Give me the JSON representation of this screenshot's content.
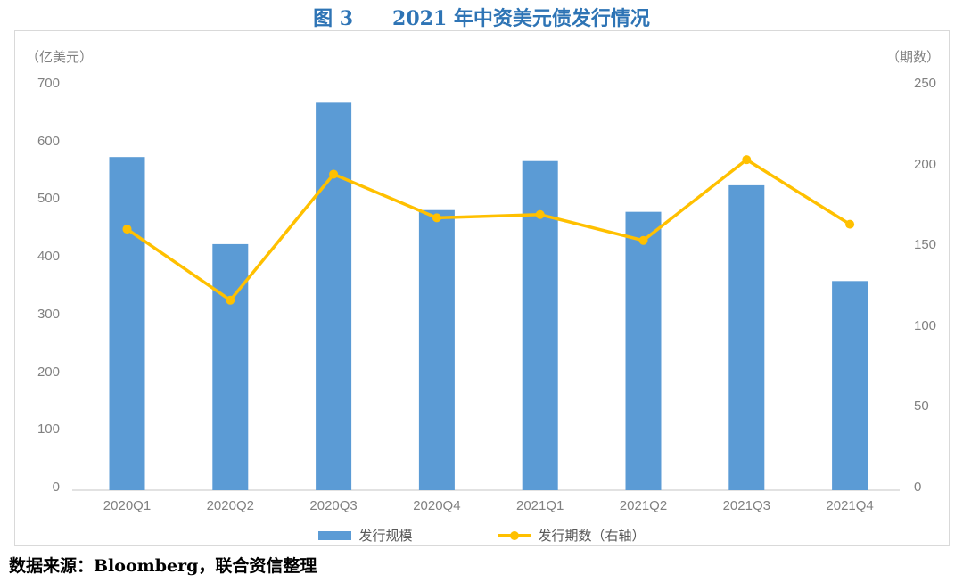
{
  "title": "图 3　　2021 年中资美元债发行情况",
  "source_note": "数据来源：Bloomberg，联合资信整理",
  "colors": {
    "title_text": "#2E74B5",
    "bar": "#5B9BD5",
    "line": "#FFC000",
    "axis_text": "#808080",
    "legend_text": "#595959",
    "axis_line": "#D9D9D9",
    "panel_border": "#D9D9D9"
  },
  "chart_data": {
    "type": "bar",
    "title": "图 3　2021 年中资美元债发行情况",
    "categories": [
      "2020Q1",
      "2020Q2",
      "2020Q3",
      "2020Q4",
      "2021Q1",
      "2021Q2",
      "2021Q3",
      "2021Q4"
    ],
    "series": [
      {
        "name": "发行规模",
        "type": "bar",
        "axis": "left",
        "color": "#5B9BD5",
        "values": [
          573,
          422,
          667,
          481,
          566,
          478,
          524,
          358
        ]
      },
      {
        "name": "发行期数（右轴）",
        "type": "line",
        "axis": "right",
        "color": "#FFC000",
        "values": [
          160,
          116,
          194,
          167,
          169,
          153,
          203,
          163
        ]
      }
    ],
    "left_axis": {
      "unit_label": "（亿美元）",
      "ylim": [
        0,
        700
      ],
      "ticks": [
        0,
        100,
        200,
        300,
        400,
        500,
        600,
        700
      ]
    },
    "right_axis": {
      "unit_label": "（期数）",
      "ylim": [
        0,
        250
      ],
      "ticks": [
        0,
        50,
        100,
        150,
        200,
        250
      ]
    },
    "grid": false,
    "legend_position": "bottom"
  }
}
